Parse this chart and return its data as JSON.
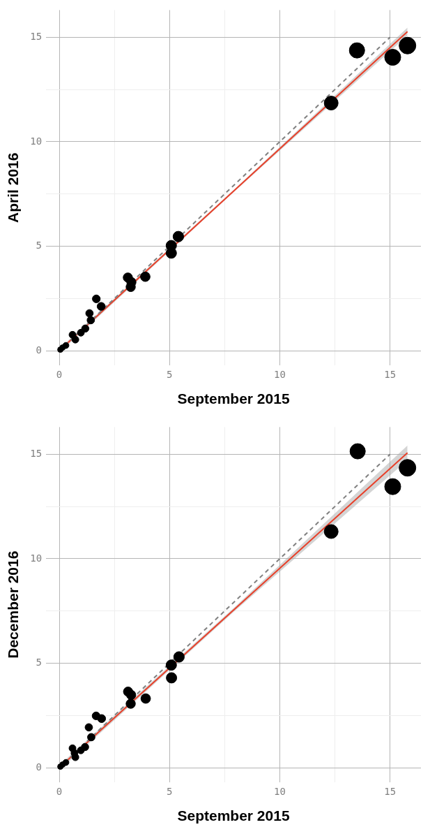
{
  "chart_data": [
    {
      "type": "bubble",
      "xlabel": "September 2015",
      "ylabel": "April 2016",
      "xlim": [
        -0.6,
        16.4
      ],
      "ylim": [
        -0.7,
        16.3
      ],
      "xticks": [
        0,
        {
          "value": 2.5,
          "label": null
        },
        5,
        {
          "value": 7.5,
          "label": null
        },
        10,
        {
          "value": 12.5,
          "label": null
        },
        15
      ],
      "yticks": [
        0,
        {
          "value": 2.5,
          "label": null
        },
        5,
        {
          "value": 7.5,
          "label": null
        },
        10,
        {
          "value": 12.5,
          "label": null
        },
        15
      ],
      "grid": true,
      "series": [
        {
          "marker": "circle",
          "color": "#000000",
          "x": [
            0.05,
            0.15,
            0.3,
            0.6,
            0.73,
            0.98,
            1.18,
            1.43,
            1.37,
            1.68,
            1.9,
            3.11,
            3.27,
            3.24,
            3.9,
            5.08,
            5.08,
            5.4,
            12.33,
            13.5,
            15.12,
            15.79
          ],
          "values": [
            0.05,
            0.15,
            0.25,
            0.76,
            0.53,
            0.86,
            1.06,
            1.46,
            1.79,
            2.48,
            2.12,
            3.5,
            3.28,
            3.05,
            3.54,
            5.03,
            4.67,
            5.46,
            11.85,
            14.37,
            14.04,
            14.6
          ],
          "sizes": [
            0.11,
            0.11,
            0.13,
            0.17,
            0.17,
            0.17,
            0.19,
            0.2,
            0.2,
            0.22,
            0.23,
            0.31,
            0.31,
            0.31,
            0.33,
            0.39,
            0.39,
            0.4,
            0.69,
            0.84,
            0.92,
            1
          ]
        },
        {
          "type": "line",
          "color": "#e8402a",
          "x": [
            0,
            7.9,
            15.79
          ],
          "values": [
            0,
            7.63,
            15.27
          ],
          "lower": [
            -0.1,
            7.58,
            15.08
          ],
          "upper": [
            0.1,
            7.68,
            15.46
          ]
        },
        {
          "type": "line",
          "color": "#808080",
          "line_style": "dashed",
          "x": [
            0,
            15
          ],
          "values": [
            0,
            15
          ]
        }
      ]
    },
    {
      "type": "bubble",
      "xlabel": "September 2015",
      "ylabel": "December 2016",
      "xlim": [
        -0.6,
        16.4
      ],
      "ylim": [
        -0.7,
        16.3
      ],
      "xticks": [
        0,
        {
          "value": 2.5,
          "label": null
        },
        5,
        {
          "value": 7.5,
          "label": null
        },
        10,
        {
          "value": 12.5,
          "label": null
        },
        15
      ],
      "yticks": [
        0,
        {
          "value": 2.5,
          "label": null
        },
        5,
        {
          "value": 7.5,
          "label": null
        },
        10,
        {
          "value": 12.5,
          "label": null
        },
        15
      ],
      "grid": true,
      "series": [
        {
          "marker": "circle",
          "color": "#000000",
          "x": [
            0.05,
            0.15,
            0.3,
            0.6,
            0.69,
            0.73,
            0.98,
            1.17,
            1.45,
            1.34,
            1.67,
            1.92,
            3.12,
            3.26,
            3.24,
            3.92,
            5.08,
            5.09,
            5.43,
            12.33,
            13.53,
            15.12,
            15.79
          ],
          "values": [
            0.05,
            0.15,
            0.25,
            0.93,
            0.7,
            0.5,
            0.83,
            0.99,
            1.46,
            1.93,
            2.48,
            2.35,
            3.64,
            3.48,
            3.06,
            3.31,
            4.91,
            4.3,
            5.3,
            11.3,
            15.14,
            13.45,
            14.35
          ],
          "sizes": [
            0.11,
            0.11,
            0.13,
            0.17,
            0.17,
            0.17,
            0.17,
            0.19,
            0.2,
            0.2,
            0.22,
            0.23,
            0.31,
            0.31,
            0.31,
            0.33,
            0.39,
            0.39,
            0.4,
            0.69,
            0.84,
            0.92,
            1
          ]
        },
        {
          "type": "line",
          "color": "#e8402a",
          "x": [
            0,
            7.9,
            15.79
          ],
          "values": [
            0,
            7.54,
            15.07
          ],
          "lower": [
            -0.12,
            7.45,
            14.72
          ],
          "upper": [
            0.12,
            7.63,
            15.42
          ]
        },
        {
          "type": "line",
          "color": "#808080",
          "line_style": "dashed",
          "x": [
            0,
            15
          ],
          "values": [
            0,
            15
          ]
        }
      ]
    }
  ]
}
